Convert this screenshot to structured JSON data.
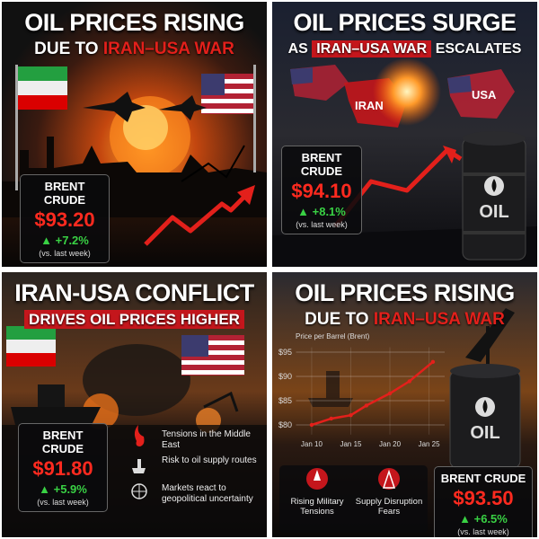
{
  "panels": [
    {
      "title": "OIL PRICES RISING",
      "subtitle_prefix": "DUE TO",
      "subtitle_highlight": "IRAN–USA WAR",
      "price_box": {
        "label": "BRENT CRUDE",
        "price": "$93.20",
        "change": "▲ +7.2%",
        "note": "(vs. last week)"
      }
    },
    {
      "title": "OIL PRICES SURGE",
      "subtitle_prefix": "AS",
      "subtitle_highlight": "IRAN–USA WAR",
      "subtitle_suffix": "ESCALATES",
      "map_labels": [
        "IRAN",
        "USA"
      ],
      "barrel_label": "OIL",
      "price_box": {
        "label": "BRENT CRUDE",
        "price": "$94.10",
        "change": "▲ +8.1%",
        "note": "(vs. last week)"
      }
    },
    {
      "title": "IRAN-USA CONFLICT",
      "subtitle_highlight": "DRIVES OIL PRICES HIGHER",
      "price_box": {
        "label": "BRENT CRUDE",
        "price": "$91.80",
        "change": "▲ +5.9%",
        "note": "(vs. last week)"
      },
      "bullets": [
        "Tensions in the Middle East",
        "Risk to oil supply routes",
        "Markets react to geopolitical uncertainty"
      ]
    },
    {
      "title": "OIL PRICES RISING",
      "subtitle_prefix": "DUE TO",
      "subtitle_highlight": "IRAN–USA WAR",
      "barrel_label": "OIL",
      "chart": {
        "type": "line",
        "title": "Price per Barrel (Brent)",
        "x": [
          10,
          12.5,
          15,
          17,
          20,
          22.5,
          25.5
        ],
        "series": [
          {
            "color": "#e3201b",
            "values": [
              80,
              81.3,
              82,
              84,
              86.5,
              89,
              93
            ]
          }
        ],
        "xlim": [
          8,
          27
        ],
        "xticks": [
          {
            "value": 10,
            "label": "Jan 10"
          },
          {
            "value": 15,
            "label": "Jan 15"
          },
          {
            "value": 20,
            "label": "Jan 20"
          },
          {
            "value": 25,
            "label": "Jan 25"
          }
        ],
        "ylim": [
          78,
          96
        ],
        "yticks": [
          {
            "value": 80,
            "label": "$80"
          },
          {
            "value": 85,
            "label": "$85"
          },
          {
            "value": 90,
            "label": "$90"
          },
          {
            "value": 95,
            "label": "$95"
          }
        ],
        "grid": true
      },
      "icons": [
        "Rising Military Tensions",
        "Supply Disruption Fears"
      ],
      "price_box": {
        "label": "BRENT CRUDE",
        "price": "$93.50",
        "change": "▲ +6.5%",
        "note": "(vs. last week)"
      }
    }
  ]
}
